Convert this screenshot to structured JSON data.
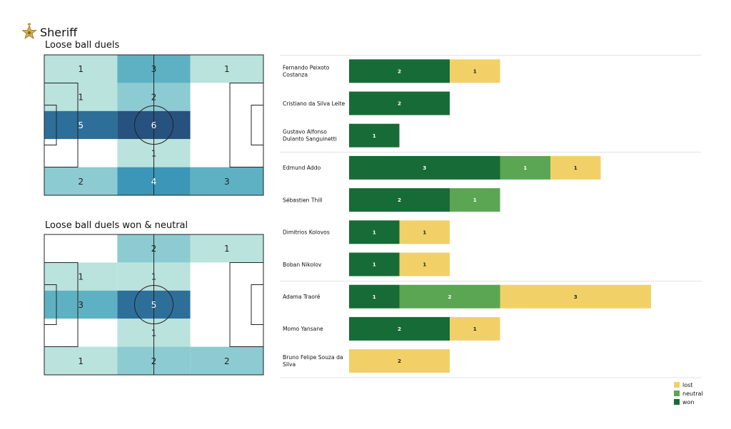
{
  "team": {
    "name": "Sheriff",
    "logo": "sheriff-star-icon"
  },
  "pitch1": {
    "title": "Loose ball duels",
    "rows": [
      [
        "1",
        "3",
        "1"
      ],
      [
        "1",
        "2",
        ""
      ],
      [
        "5",
        "6",
        ""
      ],
      [
        "",
        "1",
        ""
      ],
      [
        "2",
        "4",
        "3"
      ]
    ]
  },
  "pitch2": {
    "title": "Loose ball duels won & neutral",
    "rows": [
      [
        "",
        "2",
        "1"
      ],
      [
        "1",
        "1",
        ""
      ],
      [
        "3",
        "5",
        ""
      ],
      [
        "",
        "1",
        ""
      ],
      [
        "1",
        "2",
        "2"
      ]
    ]
  },
  "colors": {
    "won": "#176b37",
    "neutral": "#5aa653",
    "lost": "#f1d167",
    "heat_scale": [
      "#ffffff",
      "#b9e3dc",
      "#8ccbd1",
      "#5eb1c3",
      "#3b96b8",
      "#2e6f9a",
      "#27517f"
    ]
  },
  "chart_data": [
    {
      "type": "heatmap",
      "title": "Loose ball duels",
      "values": [
        [
          1,
          3,
          1
        ],
        [
          1,
          2,
          0
        ],
        [
          5,
          6,
          0
        ],
        [
          0,
          1,
          0
        ],
        [
          2,
          4,
          3
        ]
      ]
    },
    {
      "type": "heatmap",
      "title": "Loose ball duels won & neutral",
      "values": [
        [
          0,
          2,
          1
        ],
        [
          1,
          1,
          0
        ],
        [
          3,
          5,
          0
        ],
        [
          0,
          1,
          0
        ],
        [
          1,
          2,
          2
        ]
      ]
    },
    {
      "type": "bar",
      "orientation": "horizontal",
      "stacked": true,
      "categories": [
        [
          "Fernando Peixoto",
          "Costanza"
        ],
        [
          "Cristiano da Silva Leite"
        ],
        [
          "Gustavo Alfonso",
          "Dulanto Sanguinetti"
        ],
        [
          "Edmund Addo"
        ],
        [
          "Sébastien Thill"
        ],
        [
          "Dimitrios Kolovos"
        ],
        [
          "Boban Nikolov"
        ],
        [
          "Adama Traoré"
        ],
        [
          "Momo Yansane"
        ],
        [
          "Bruno Felipe Souza da",
          "Silva"
        ]
      ],
      "groups": [
        [
          0,
          1,
          2
        ],
        [
          3,
          4,
          5,
          6
        ],
        [
          7,
          8,
          9
        ]
      ],
      "series": [
        {
          "name": "won",
          "values": [
            2,
            2,
            1,
            3,
            2,
            1,
            1,
            1,
            2,
            0
          ]
        },
        {
          "name": "neutral",
          "values": [
            0,
            0,
            0,
            1,
            1,
            0,
            0,
            2,
            0,
            0
          ]
        },
        {
          "name": "lost",
          "values": [
            1,
            0,
            0,
            1,
            0,
            1,
            1,
            3,
            1,
            2
          ]
        }
      ],
      "legend": "bottom-right",
      "legend_entries": [
        "lost",
        "neutral",
        "won"
      ]
    }
  ]
}
